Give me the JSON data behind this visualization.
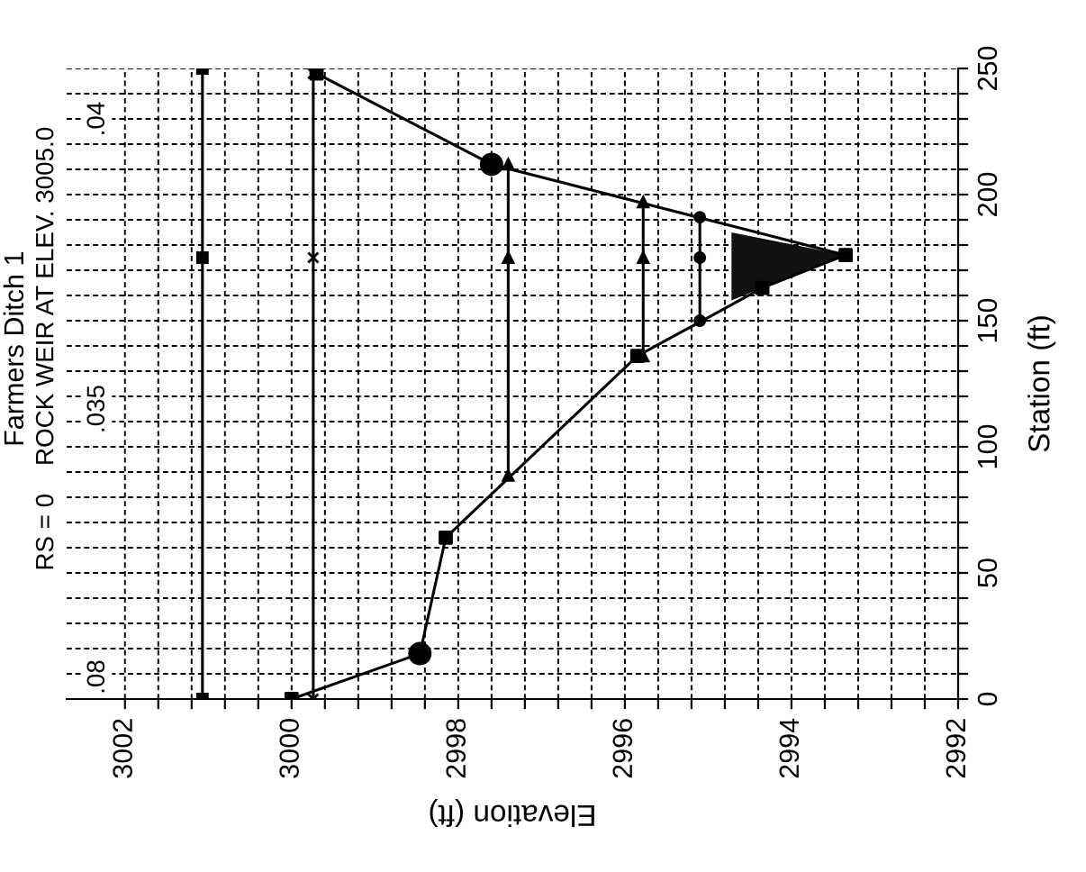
{
  "chart_data": {
    "type": "line",
    "title": "Farmers Ditch 1",
    "subtitle": "RS = 0    ROCK WEIR AT ELEV. 3005.0",
    "xlabel": "Elevation (ft)",
    "ylabel": "Station (ft)",
    "xlim": [
      3002.7,
      2992
    ],
    "ylim": [
      0,
      250
    ],
    "xticks": [
      3002,
      {
        "value": 3001.6,
        "label": null
      },
      {
        "value": 3001.2,
        "label": null
      },
      {
        "value": 3000.8,
        "label": null
      },
      {
        "value": 3000.4,
        "label": null
      },
      3000,
      {
        "value": 2999.6,
        "label": null
      },
      {
        "value": 2999.2,
        "label": null
      },
      {
        "value": 2998.8,
        "label": null
      },
      {
        "value": 2998.4,
        "label": null
      },
      2998,
      {
        "value": 2997.6,
        "label": null
      },
      {
        "value": 2997.2,
        "label": null
      },
      {
        "value": 2996.8,
        "label": null
      },
      {
        "value": 2996.4,
        "label": null
      },
      2996,
      {
        "value": 2995.6,
        "label": null
      },
      {
        "value": 2995.2,
        "label": null
      },
      {
        "value": 2994.8,
        "label": null
      },
      {
        "value": 2994.4,
        "label": null
      },
      2994,
      {
        "value": 2993.6,
        "label": null
      },
      {
        "value": 2993.2,
        "label": null
      },
      {
        "value": 2992.8,
        "label": null
      },
      {
        "value": 2992.4,
        "label": null
      },
      2992
    ],
    "yticks": [
      0,
      {
        "value": 10,
        "label": null
      },
      {
        "value": 20,
        "label": null
      },
      {
        "value": 30,
        "label": null
      },
      {
        "value": 40,
        "label": null
      },
      50,
      {
        "value": 60,
        "label": null
      },
      {
        "value": 70,
        "label": null
      },
      {
        "value": 80,
        "label": null
      },
      {
        "value": 90,
        "label": null
      },
      100,
      {
        "value": 110,
        "label": null
      },
      {
        "value": 120,
        "label": null
      },
      {
        "value": 130,
        "label": null
      },
      {
        "value": 140,
        "label": null
      },
      150,
      {
        "value": 160,
        "label": null
      },
      {
        "value": 170,
        "label": null
      },
      {
        "value": 180,
        "label": null
      },
      {
        "value": 190,
        "label": null
      },
      200,
      {
        "value": 210,
        "label": null
      },
      {
        "value": 220,
        "label": null
      },
      {
        "value": 230,
        "label": null
      },
      {
        "value": 240,
        "label": null
      },
      250
    ],
    "grid": true,
    "annotations": [
      ".08",
      ".035",
      ".04"
    ],
    "series": [
      {
        "type": "area",
        "color": "#111111",
        "x": [
          2994.72,
          2994.35,
          2993.35,
          2994.72
        ],
        "values": [
          158,
          163,
          176,
          185
        ]
      },
      {
        "color": "#000000",
        "marker": "square",
        "x": [
          3001.07,
          3001.07,
          3001.07
        ],
        "values": [
          0,
          175,
          250
        ]
      },
      {
        "color": "#000000",
        "marker": "cross",
        "x": [
          2999.74,
          2999.74,
          2999.74
        ],
        "values": [
          0,
          175,
          248
        ]
      },
      {
        "type": "line",
        "color": "#000000",
        "marker": "triangle",
        "x": [
          2997.4,
          2997.4,
          2997.4
        ],
        "values": [
          88.6,
          175,
          212
        ]
      },
      {
        "type": "line",
        "color": "#000000",
        "marker": "triangle",
        "x": [
          2995.78,
          2995.78,
          2995.78
        ],
        "values": [
          136,
          175,
          197
        ]
      },
      {
        "color": "#000000",
        "marker": "circle",
        "x": [
          2995.1,
          2995.1,
          2995.1
        ],
        "values": [
          150,
          175,
          191
        ]
      },
      {
        "color": "#000000",
        "marker": "none",
        "x": [
          3000,
          2998.46,
          2998.15,
          2995.85,
          2994.35,
          2993.35,
          2997.6,
          2999.7
        ],
        "values": [
          0,
          18,
          64,
          136,
          163,
          176,
          212,
          248
        ]
      },
      {
        "type": "scatter",
        "color": "#000000",
        "marker": "square",
        "x": [
          3000,
          2998.15,
          2995.85,
          2994.35,
          2993.35,
          2999.7
        ],
        "values": [
          0,
          64,
          136,
          163,
          176,
          248
        ]
      },
      {
        "type": "scatter",
        "color": "#000000",
        "marker": "circle",
        "x": [
          2998.46,
          2997.6
        ],
        "values": [
          18,
          212
        ]
      }
    ]
  }
}
